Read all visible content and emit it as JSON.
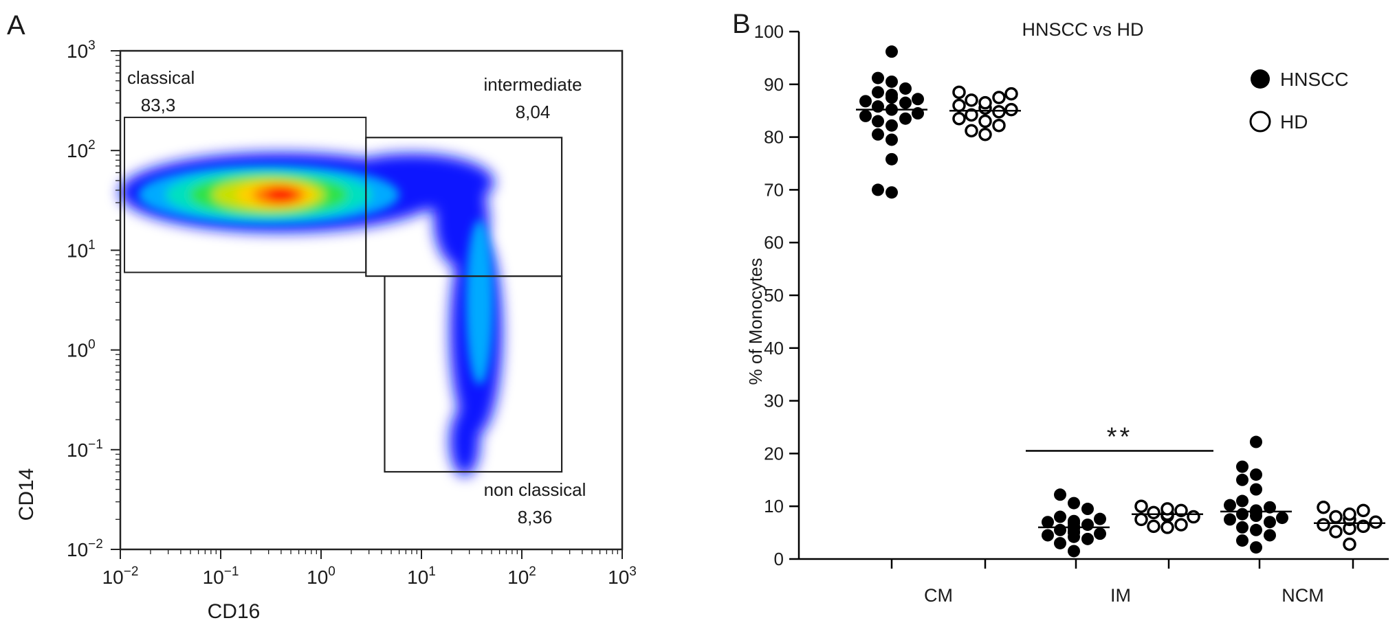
{
  "panels": {
    "a_label": "A",
    "b_label": "B"
  },
  "chart_data": [
    {
      "type": "scatter",
      "chart_kind": "flow-cytometry density plot",
      "title": "",
      "xlabel": "CD16",
      "ylabel": "CD14",
      "x_scale": "log",
      "y_scale": "log",
      "xlim": [
        0.01,
        1000
      ],
      "ylim": [
        0.01,
        1000
      ],
      "x_ticks": [
        {
          "value": 0.01,
          "base": "10",
          "exp": "−2"
        },
        {
          "value": 0.1,
          "base": "10",
          "exp": "−1"
        },
        {
          "value": 1,
          "base": "10",
          "exp": "0"
        },
        {
          "value": 10,
          "base": "10",
          "exp": "1"
        },
        {
          "value": 100,
          "base": "10",
          "exp": "2"
        },
        {
          "value": 1000,
          "base": "10",
          "exp": "3"
        }
      ],
      "y_ticks": [
        {
          "value": 0.01,
          "base": "10",
          "exp": "−2"
        },
        {
          "value": 0.1,
          "base": "10",
          "exp": "−1"
        },
        {
          "value": 1,
          "base": "10",
          "exp": "0"
        },
        {
          "value": 10,
          "base": "10",
          "exp": "1"
        },
        {
          "value": 100,
          "base": "10",
          "exp": "2"
        },
        {
          "value": 1000,
          "base": "10",
          "exp": "3"
        }
      ],
      "gates": [
        {
          "name": "classical",
          "value": "83,3",
          "x_range": [
            0.011,
            2.8
          ],
          "y_range": [
            6.0,
            215
          ]
        },
        {
          "name": "intermediate",
          "value": "8,04",
          "x_range": [
            2.8,
            250
          ],
          "y_range": [
            5.5,
            135
          ]
        },
        {
          "name": "non classical",
          "value": "8,36",
          "x_range": [
            4.3,
            250
          ],
          "y_range": [
            0.06,
            5.5
          ]
        }
      ],
      "density_colors": [
        "#0a17ff",
        "#00aaff",
        "#00e0c0",
        "#2ee24a",
        "#c8e000",
        "#ffd000",
        "#ff7a00",
        "#ff1a00"
      ]
    },
    {
      "type": "scatter",
      "chart_kind": "dot plot with median lines",
      "title": "HNSCC vs HD",
      "xlabel": "",
      "ylabel": "% of Monocytes",
      "ylim": [
        0,
        100
      ],
      "y_ticks": [
        0,
        10,
        20,
        30,
        40,
        50,
        60,
        70,
        80,
        90,
        100
      ],
      "grid": false,
      "legend_position": "top-right",
      "categories": [
        "CM",
        "IM",
        "NCM"
      ],
      "series": [
        {
          "name": "HNSCC",
          "marker": "filled-circle",
          "values": {
            "CM": [
              96.2,
              91.2,
              90.5,
              89.2,
              88.5,
              88.0,
              87.5,
              87.2,
              86.8,
              86.5,
              85.8,
              85.2,
              84.5,
              84.0,
              83.5,
              83.0,
              82.2,
              80.5,
              79.5,
              75.8,
              70.0,
              69.5
            ],
            "IM": [
              12.2,
              10.6,
              9.5,
              8.0,
              7.6,
              7.2,
              7.0,
              6.8,
              6.5,
              6.2,
              6.0,
              5.8,
              5.5,
              5.2,
              5.0,
              4.8,
              4.5,
              4.2,
              3.8,
              3.0,
              1.5
            ],
            "NCM": [
              22.2,
              17.5,
              16.0,
              15.0,
              13.2,
              11.0,
              10.2,
              9.8,
              9.2,
              9.0,
              8.8,
              8.5,
              8.2,
              7.8,
              7.5,
              7.0,
              6.0,
              5.5,
              4.5,
              3.5,
              2.2
            ]
          },
          "median": {
            "CM": 85.2,
            "IM": 6.0,
            "NCM": 9.0
          }
        },
        {
          "name": "HD",
          "marker": "open-circle",
          "values": {
            "CM": [
              88.5,
              88.2,
              87.5,
              87.0,
              86.5,
              86.0,
              85.5,
              85.2,
              84.8,
              84.2,
              83.5,
              83.0,
              82.2,
              81.2,
              80.5
            ],
            "IM": [
              10.0,
              9.5,
              9.2,
              8.8,
              8.5,
              8.2,
              8.0,
              7.5,
              6.5,
              6.2,
              6.0
            ],
            "NCM": [
              9.8,
              9.2,
              8.5,
              8.0,
              7.5,
              7.0,
              6.5,
              6.2,
              5.8,
              5.2,
              2.8
            ]
          },
          "median": {
            "CM": 85.0,
            "IM": 8.5,
            "NCM": 6.8
          }
        }
      ],
      "annotations": [
        {
          "text": "**",
          "category": "IM",
          "line_y": 20.5
        }
      ]
    }
  ]
}
